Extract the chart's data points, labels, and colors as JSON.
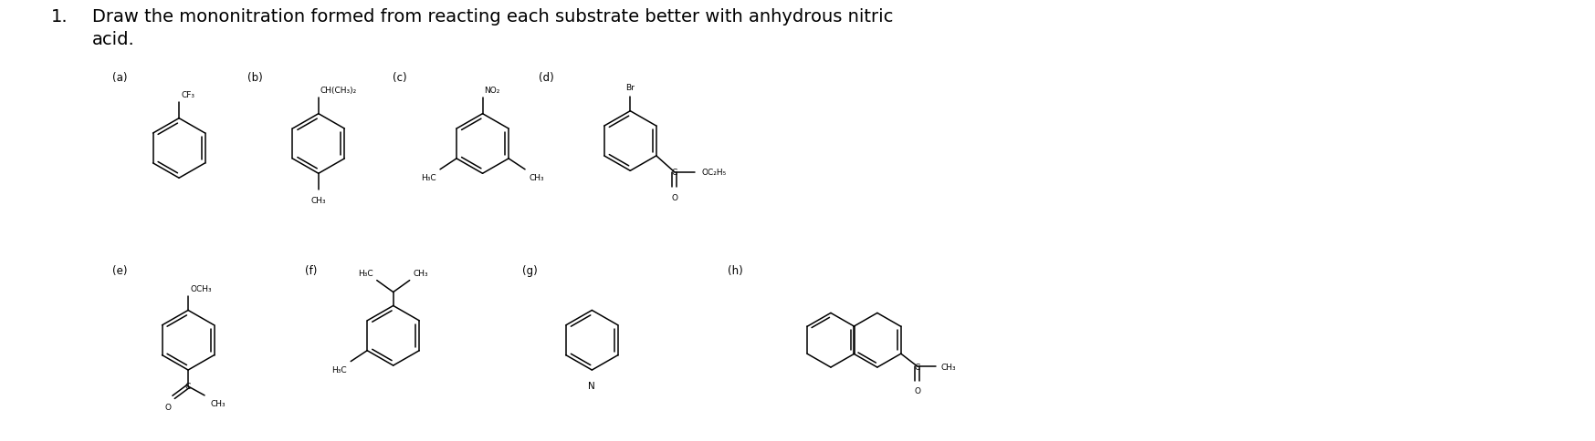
{
  "bg_color": "#ffffff",
  "text_color": "#000000",
  "title_num": "1.",
  "title_text1": "Draw the mononitration formed from reacting each substrate better with anhydrous nitric",
  "title_text2": "acid.",
  "title_fontsize": 14,
  "label_fontsize": 8.5,
  "mol_fontsize": 7.0,
  "lw": 1.1
}
